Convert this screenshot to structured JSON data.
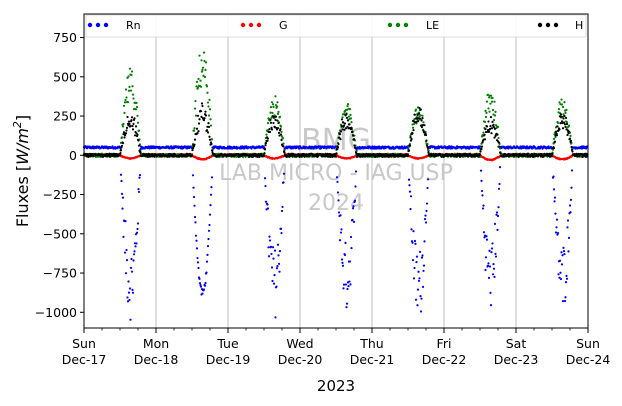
{
  "chart_data": {
    "type": "scatter",
    "year_label": "2023",
    "ylabel": "Fluxes [W/m²]",
    "ylabel_main": "Fluxes [",
    "ylabel_unit": "W/m",
    "ylabel_exp": "2",
    "ylabel_close": "]",
    "ylim": [
      -1100,
      900
    ],
    "yticks": [
      -1000,
      -750,
      -500,
      -250,
      0,
      250,
      500,
      750
    ],
    "xlim": [
      "2023-12-17",
      "2023-12-24"
    ],
    "xticks": [
      {
        "date": "2023-12-17",
        "day": "Sun",
        "label": "Dec-17"
      },
      {
        "date": "2023-12-18",
        "day": "Mon",
        "label": "Dec-18"
      },
      {
        "date": "2023-12-19",
        "day": "Tue",
        "label": "Dec-19"
      },
      {
        "date": "2023-12-20",
        "day": "Wed",
        "label": "Dec-20"
      },
      {
        "date": "2023-12-21",
        "day": "Thu",
        "label": "Dec-21"
      },
      {
        "date": "2023-12-22",
        "day": "Fri",
        "label": "Dec-22"
      },
      {
        "date": "2023-12-23",
        "day": "Sat",
        "label": "Dec-23"
      },
      {
        "date": "2023-12-24",
        "day": "Sun",
        "label": "Dec-24"
      }
    ],
    "grid": "vertical",
    "legend_placement": "top",
    "watermark": [
      "BMG",
      "LAB MICRO - IAG USP",
      "2024"
    ],
    "series": [
      {
        "name": "Rn",
        "color": "#0000ff",
        "key": "Rn",
        "daily_min": [
          -1050,
          -900,
          -1040,
          -1000,
          -1080,
          -990,
          -1010
        ],
        "night_value": 50
      },
      {
        "name": "G",
        "color": "#ff0000",
        "key": "G",
        "daily_min": [
          -20,
          -25,
          -20,
          -20,
          -20,
          -30,
          -25
        ],
        "night_value": 5
      },
      {
        "name": "LE",
        "color": "#008000",
        "key": "LE",
        "daily_max": [
          560,
          710,
          380,
          340,
          330,
          430,
          380
        ],
        "night_value": 0
      },
      {
        "name": "H",
        "color": "#000000",
        "key": "H",
        "daily_max": [
          280,
          330,
          270,
          280,
          320,
          250,
          280
        ],
        "night_value": 0
      }
    ],
    "samples_per_day": 144
  }
}
